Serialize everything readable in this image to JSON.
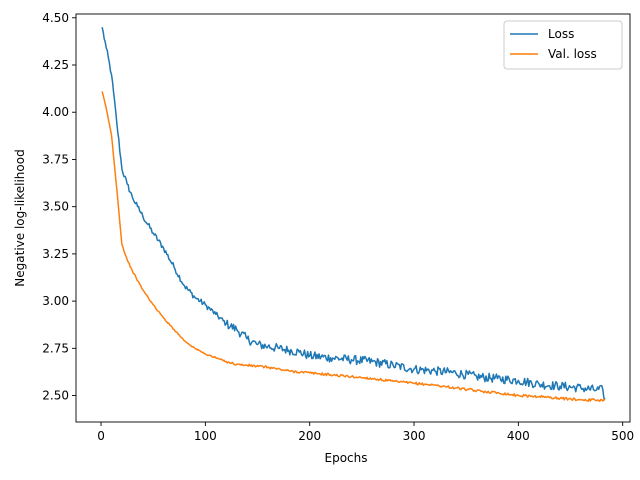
{
  "chart_data": {
    "type": "line",
    "title": "",
    "xlabel": "Epochs",
    "ylabel": "Negative log-likelihood",
    "xlim": [
      -24,
      507
    ],
    "ylim": [
      2.36,
      4.52
    ],
    "xticks": [
      0,
      100,
      200,
      300,
      400,
      500
    ],
    "xtick_labels": [
      "0",
      "100",
      "200",
      "300",
      "400",
      "500"
    ],
    "yticks": [
      2.5,
      2.75,
      3.0,
      3.25,
      3.5,
      3.75,
      4.0,
      4.25,
      4.5
    ],
    "ytick_labels": [
      "2.50",
      "2.75",
      "3.00",
      "3.25",
      "3.50",
      "3.75",
      "4.00",
      "4.25",
      "4.50"
    ],
    "grid": false,
    "legend_position": "top-right",
    "series": [
      {
        "name": "Loss",
        "color": "#1f77b4",
        "noise": 0.015,
        "x": [
          1,
          5,
          10,
          15,
          20,
          25,
          30,
          35,
          40,
          50,
          60,
          70,
          80,
          90,
          100,
          110,
          120,
          130,
          140,
          150,
          160,
          170,
          180,
          190,
          200,
          220,
          240,
          260,
          280,
          300,
          320,
          340,
          360,
          380,
          400,
          420,
          440,
          460,
          475,
          481,
          483
        ],
        "y": [
          4.45,
          4.34,
          4.2,
          3.95,
          3.7,
          3.62,
          3.55,
          3.5,
          3.45,
          3.36,
          3.28,
          3.18,
          3.08,
          3.02,
          2.98,
          2.93,
          2.88,
          2.85,
          2.8,
          2.77,
          2.76,
          2.75,
          2.74,
          2.73,
          2.71,
          2.7,
          2.69,
          2.68,
          2.66,
          2.64,
          2.63,
          2.62,
          2.6,
          2.59,
          2.58,
          2.56,
          2.55,
          2.54,
          2.53,
          2.53,
          2.48
        ]
      },
      {
        "name": "Val. loss",
        "color": "#ff7f0e",
        "noise": 0.004,
        "x": [
          1,
          5,
          10,
          15,
          20,
          25,
          30,
          40,
          50,
          60,
          70,
          80,
          90,
          100,
          110,
          120,
          130,
          140,
          160,
          180,
          200,
          220,
          240,
          260,
          280,
          300,
          320,
          340,
          360,
          380,
          400,
          420,
          440,
          460,
          483
        ],
        "y": [
          4.11,
          4.02,
          3.88,
          3.6,
          3.3,
          3.22,
          3.16,
          3.06,
          2.98,
          2.91,
          2.85,
          2.79,
          2.75,
          2.72,
          2.7,
          2.68,
          2.665,
          2.66,
          2.65,
          2.63,
          2.62,
          2.61,
          2.6,
          2.59,
          2.575,
          2.565,
          2.555,
          2.54,
          2.525,
          2.515,
          2.5,
          2.495,
          2.485,
          2.478,
          2.475
        ]
      }
    ]
  }
}
